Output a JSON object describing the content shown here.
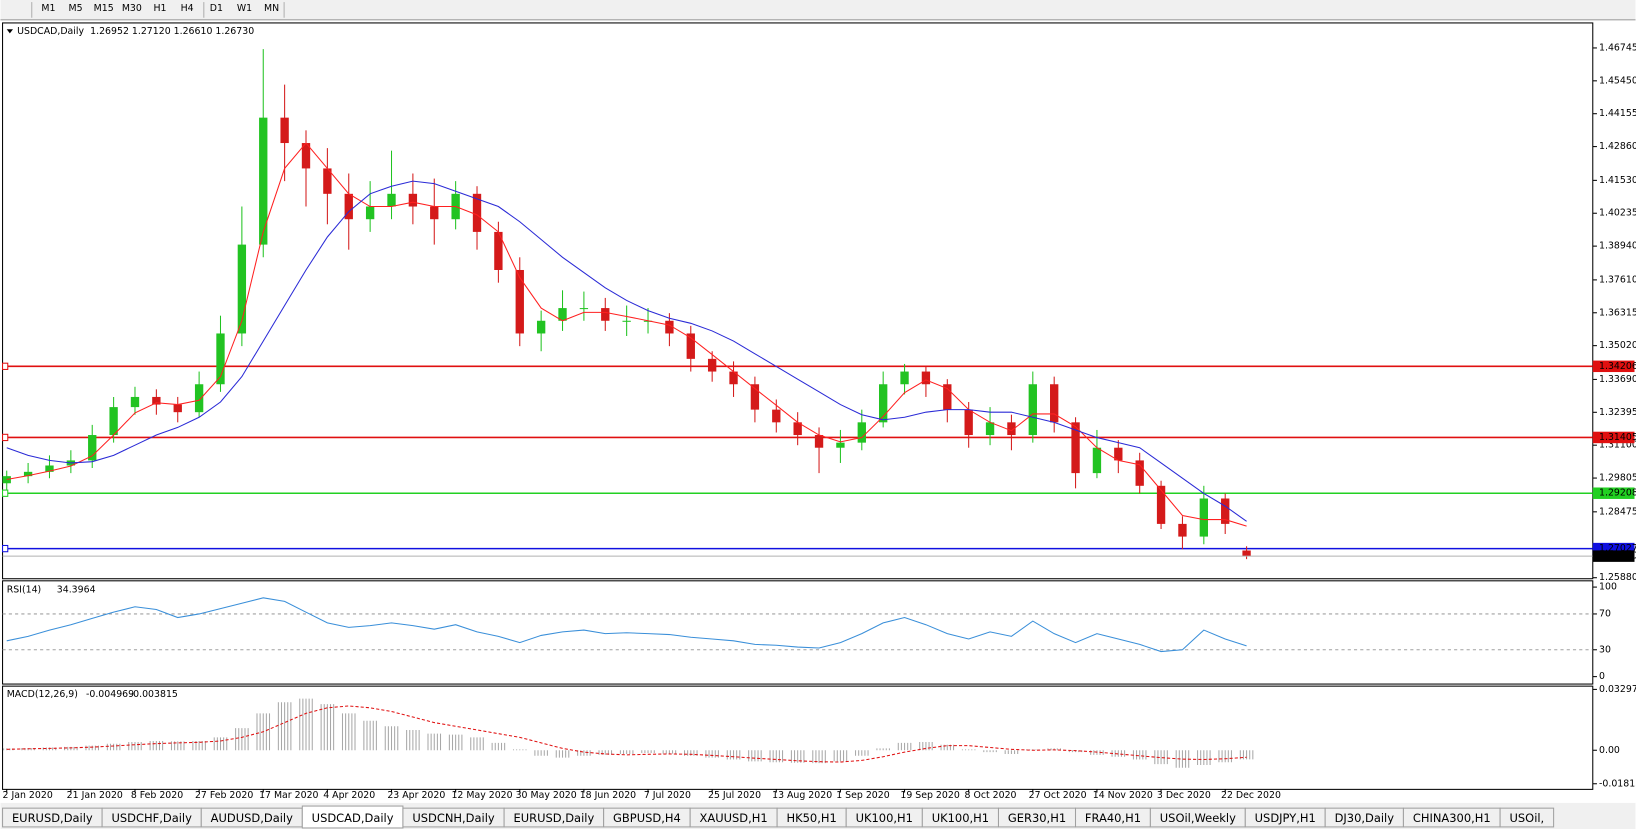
{
  "toolbar": {
    "buttons": [
      "M1",
      "M5",
      "M15",
      "M30",
      "H1",
      "H4",
      "D1",
      "W1",
      "MN"
    ]
  },
  "chart_data": [
    {
      "type": "candlestick",
      "title": "USDCAD,Daily",
      "subtitle": "1.26952 1.27120 1.26610 1.26730",
      "categories": [
        "2 Jan 2020",
        null,
        null,
        "21 Jan 2020",
        null,
        null,
        "8 Feb 2020",
        null,
        null,
        "27 Feb 2020",
        null,
        null,
        "17 Mar 2020",
        null,
        null,
        "4 Apr 2020",
        null,
        null,
        "23 Apr 2020",
        null,
        null,
        "12 May 2020",
        null,
        null,
        "30 May 2020",
        null,
        null,
        "18 Jun 2020",
        null,
        null,
        "7 Jul 2020",
        null,
        null,
        "25 Jul 2020",
        null,
        null,
        "13 Aug 2020",
        null,
        null,
        "1 Sep 2020",
        null,
        null,
        "19 Sep 2020",
        null,
        null,
        "8 Oct 2020",
        null,
        null,
        "27 Oct 2020",
        null,
        null,
        "14 Nov 2020",
        null,
        null,
        "3 Dec 2020",
        null,
        null,
        "22 Dec 2020",
        null
      ],
      "open": [
        1.296,
        1.2988,
        1.3005,
        1.303,
        1.305,
        1.315,
        1.326,
        1.33,
        1.327,
        1.324,
        1.335,
        1.355,
        1.39,
        1.44,
        1.43,
        1.42,
        1.41,
        1.4,
        1.405,
        1.41,
        1.405,
        1.4,
        1.41,
        1.395,
        1.38,
        1.355,
        1.36,
        1.365,
        1.365,
        1.36,
        1.36,
        1.36,
        1.355,
        1.345,
        1.34,
        1.335,
        1.325,
        1.32,
        1.315,
        1.31,
        1.312,
        1.32,
        1.335,
        1.34,
        1.335,
        1.325,
        1.315,
        1.32,
        1.315,
        1.335,
        1.32,
        1.3,
        1.31,
        1.305,
        1.295,
        1.28,
        1.275,
        1.29,
        1.26952
      ],
      "high": [
        1.301,
        1.304,
        1.307,
        1.309,
        1.319,
        1.33,
        1.334,
        1.333,
        1.33,
        1.34,
        1.362,
        1.405,
        1.467,
        1.453,
        1.435,
        1.428,
        1.418,
        1.415,
        1.427,
        1.418,
        1.416,
        1.415,
        1.413,
        1.399,
        1.385,
        1.364,
        1.372,
        1.3715,
        1.369,
        1.366,
        1.365,
        1.363,
        1.358,
        1.348,
        1.344,
        1.338,
        1.329,
        1.324,
        1.318,
        1.317,
        1.325,
        1.34,
        1.343,
        1.342,
        1.337,
        1.328,
        1.326,
        1.323,
        1.34,
        1.338,
        1.322,
        1.317,
        1.313,
        1.308,
        1.297,
        1.283,
        1.295,
        1.292,
        1.2712
      ],
      "low": [
        1.293,
        1.296,
        1.298,
        1.3,
        1.302,
        1.312,
        1.323,
        1.323,
        1.32,
        1.322,
        1.332,
        1.35,
        1.385,
        1.415,
        1.405,
        1.398,
        1.388,
        1.395,
        1.4,
        1.398,
        1.39,
        1.396,
        1.388,
        1.375,
        1.35,
        1.348,
        1.356,
        1.36,
        1.356,
        1.354,
        1.355,
        1.35,
        1.34,
        1.336,
        1.33,
        1.32,
        1.316,
        1.311,
        1.3,
        1.304,
        1.309,
        1.318,
        1.331,
        1.33,
        1.32,
        1.31,
        1.311,
        1.309,
        1.312,
        1.316,
        1.294,
        1.298,
        1.3,
        1.292,
        1.278,
        1.27,
        1.272,
        1.276,
        1.2661
      ],
      "close": [
        1.2988,
        1.3005,
        1.303,
        1.305,
        1.315,
        1.326,
        1.33,
        1.327,
        1.324,
        1.335,
        1.355,
        1.39,
        1.44,
        1.43,
        1.42,
        1.41,
        1.4,
        1.405,
        1.41,
        1.405,
        1.4,
        1.41,
        1.395,
        1.38,
        1.355,
        1.36,
        1.365,
        1.365,
        1.36,
        1.36,
        1.36,
        1.355,
        1.345,
        1.34,
        1.335,
        1.325,
        1.32,
        1.315,
        1.31,
        1.312,
        1.32,
        1.335,
        1.34,
        1.335,
        1.325,
        1.315,
        1.32,
        1.315,
        1.335,
        1.32,
        1.3,
        1.31,
        1.305,
        1.295,
        1.28,
        1.275,
        1.29,
        1.28,
        1.2673
      ],
      "up_color": "#22c322",
      "down_color": "#d41a1a",
      "series": [
        {
          "color": "#ff2020",
          "values": [
            1.2975,
            1.299,
            1.3008,
            1.3028,
            1.3068,
            1.315,
            1.3237,
            1.3277,
            1.327,
            1.3287,
            1.338,
            1.36,
            1.395,
            1.42,
            1.43,
            1.42,
            1.41,
            1.405,
            1.405,
            1.4067,
            1.405,
            1.405,
            1.4017,
            1.395,
            1.377,
            1.365,
            1.36,
            1.3633,
            1.3633,
            1.3617,
            1.36,
            1.3583,
            1.3533,
            1.3467,
            1.34,
            1.3333,
            1.3267,
            1.32,
            1.315,
            1.3123,
            1.314,
            1.3223,
            1.3317,
            1.3367,
            1.3333,
            1.325,
            1.32,
            1.3167,
            1.3233,
            1.3233,
            1.3183,
            1.31,
            1.305,
            1.3033,
            1.2933,
            1.2833,
            1.2817,
            1.2817,
            1.2791
          ]
        },
        {
          "color": "#2a2ad6",
          "values": [
            1.31,
            1.307,
            1.305,
            1.304,
            1.3045,
            1.307,
            1.311,
            1.315,
            1.318,
            1.322,
            1.328,
            1.338,
            1.352,
            1.366,
            1.38,
            1.393,
            1.403,
            1.41,
            1.413,
            1.415,
            1.414,
            1.411,
            1.408,
            1.405,
            1.399,
            1.392,
            1.385,
            1.379,
            1.373,
            1.368,
            1.364,
            1.361,
            1.359,
            1.356,
            1.352,
            1.347,
            1.342,
            1.337,
            1.332,
            1.327,
            1.323,
            1.321,
            1.322,
            1.324,
            1.325,
            1.325,
            1.324,
            1.324,
            1.322,
            1.32,
            1.317,
            1.314,
            1.312,
            1.31,
            1.304,
            1.298,
            1.292,
            1.287,
            1.281
          ]
        }
      ],
      "levels": [
        {
          "value": 1.34206,
          "color": "#e01010"
        },
        {
          "value": 1.31405,
          "color": "#e01010"
        },
        {
          "value": 1.29208,
          "color": "#22d022"
        },
        {
          "value": 1.27027,
          "color": "#1010e0"
        }
      ],
      "last_price_label": "1.26730",
      "ylim": [
        1.2584,
        1.4773
      ],
      "yticks": [
        1.46745,
        {
          "value": 1.4545,
          "label": "1.45450"
        },
        1.44155,
        {
          "value": 1.4286,
          "label": "1.42860"
        },
        {
          "value": 1.4153,
          "label": "1.41530"
        },
        1.40235,
        {
          "value": 1.3894,
          "label": "1.38940"
        },
        {
          "value": 1.3761,
          "label": "1.37610"
        },
        1.36315,
        {
          "value": 1.3502,
          "label": "1.35020"
        },
        {
          "value": 1.3369,
          "label": "1.33690"
        },
        1.32395,
        {
          "value": 1.311,
          "label": "1.31100"
        },
        1.29805,
        1.28475,
        {
          "value": 1.2588,
          "label": "1.25880"
        }
      ]
    },
    {
      "type": "line",
      "title": "RSI(14)",
      "series": [
        {
          "color": "#3a8fd9",
          "values": [
            40,
            45,
            52,
            58,
            65,
            72,
            78,
            75,
            66,
            70,
            76,
            82,
            88,
            84,
            72,
            60,
            55,
            57,
            60,
            57,
            53,
            58,
            50,
            45,
            38,
            46,
            50,
            52,
            48,
            49,
            48,
            47,
            44,
            42,
            40,
            36,
            35,
            33,
            32,
            38,
            48,
            60,
            66,
            58,
            48,
            42,
            50,
            45,
            62,
            48,
            38,
            48,
            42,
            36,
            28,
            30,
            52,
            42,
            34.3964
          ]
        }
      ],
      "grid": true,
      "ylim": [
        -8.3,
        107
      ],
      "yticks": [
        0,
        30,
        70,
        100
      ]
    },
    {
      "type": "macd",
      "title": "MACD(12,26,9)",
      "series": [
        {
          "type": "bar",
          "color": "#a8a8a8",
          "values": [
            0.001,
            0.0012,
            0.0015,
            0.0018,
            0.0025,
            0.0035,
            0.0045,
            0.005,
            0.0048,
            0.005,
            0.007,
            0.012,
            0.02,
            0.026,
            0.028,
            0.025,
            0.02,
            0.016,
            0.013,
            0.011,
            0.009,
            0.0085,
            0.007,
            0.004,
            0.0005,
            -0.003,
            -0.004,
            -0.003,
            -0.0025,
            -0.002,
            -0.0015,
            -0.0018,
            -0.003,
            -0.004,
            -0.005,
            -0.006,
            -0.0065,
            -0.0068,
            -0.007,
            -0.006,
            -0.003,
            0.001,
            0.004,
            0.0045,
            0.003,
            0.0005,
            -0.001,
            -0.002,
            0.0005,
            0.001,
            -0.001,
            -0.0025,
            -0.0035,
            -0.005,
            -0.0075,
            -0.0095,
            -0.008,
            -0.0065,
            -0.004969
          ]
        },
        {
          "type": "line",
          "color": "#e01010",
          "dashed": true,
          "values": [
            0.0005,
            0.0008,
            0.001,
            0.0013,
            0.0017,
            0.0023,
            0.003,
            0.0036,
            0.004,
            0.0043,
            0.005,
            0.007,
            0.01,
            0.015,
            0.02,
            0.023,
            0.024,
            0.023,
            0.021,
            0.018,
            0.015,
            0.013,
            0.011,
            0.009,
            0.007,
            0.004,
            0.001,
            -0.001,
            -0.002,
            -0.0025,
            -0.0022,
            -0.002,
            -0.0022,
            -0.0028,
            -0.0035,
            -0.0043,
            -0.005,
            -0.0057,
            -0.0062,
            -0.0064,
            -0.0055,
            -0.0035,
            -0.001,
            0.001,
            0.0025,
            0.0025,
            0.0015,
            0.0005,
            0.0,
            0.0002,
            -0.0002,
            -0.001,
            -0.002,
            -0.003,
            -0.004,
            -0.0048,
            -0.005,
            -0.0046,
            -0.003815
          ]
        }
      ],
      "ylim": [
        -0.0212,
        0.03474
      ],
      "yticks": [
        -0.018154,
        {
          "value": 0,
          "label": "0.00"
        },
        0.032972
      ]
    }
  ],
  "tabs": {
    "items": [
      "EURUSD,Daily",
      "USDCHF,Daily",
      "AUDUSD,Daily",
      "USDCAD,Daily",
      "USDCNH,Daily",
      "EURUSD,Daily",
      "GBPUSD,H4",
      "XAUUSD,H1",
      "HK50,H1",
      "UK100,H1",
      "UK100,H1",
      "GER30,H1",
      "FRA40,H1",
      "USOil,Weekly",
      "USDJPY,H1",
      "DJ30,Daily",
      "CHINA300,H1",
      "USOil,"
    ],
    "active": 3
  }
}
